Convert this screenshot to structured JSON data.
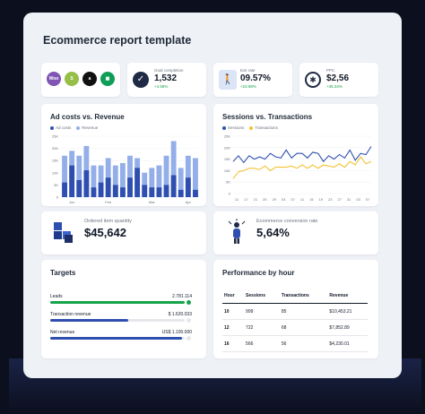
{
  "title": "Ecommerce report template",
  "colors": {
    "blue_dark": "#2f4fb0",
    "blue_light": "#93aee8",
    "yellow": "#f2c230",
    "green": "#16a34a",
    "line_blue": "#2f4fb0"
  },
  "kpis": [
    {
      "label": "Goal completion",
      "value": "1,532",
      "delta": "+4.58%"
    },
    {
      "label": "Exit rate",
      "value": "09.57%",
      "delta": "+23.98%"
    },
    {
      "label": "PPC",
      "value": "$2,56",
      "delta": "+35.34%"
    }
  ],
  "logos": [
    {
      "icon": "woocommerce-icon",
      "text": "Woo",
      "color": "#7f54b3"
    },
    {
      "icon": "shopify-icon",
      "text": "S",
      "color": "#95bf47"
    },
    {
      "icon": "amazon-icon",
      "text": "a",
      "color": "#111111"
    },
    {
      "icon": "sheets-icon",
      "text": "▦",
      "color": "#0f9d58"
    }
  ],
  "chart_data": [
    {
      "type": "bar",
      "title": "Ad costs vs. Revenue",
      "legend": [
        "Ad costs",
        "Revenue"
      ],
      "yticks": [
        "0",
        "5K",
        "10K",
        "15K",
        "20K",
        "25K"
      ],
      "ylim": [
        0,
        25000
      ],
      "xticks": [
        "Jun",
        "Feb",
        "Mar",
        "Apr"
      ],
      "series": [
        {
          "name": "Ad costs",
          "values": [
            6000,
            13000,
            7000,
            11000,
            4000,
            6000,
            8000,
            5000,
            4000,
            8000,
            12000,
            5000,
            4000,
            4000,
            5000,
            9000,
            3000,
            8000,
            3000
          ]
        },
        {
          "name": "Revenue",
          "values": [
            17000,
            19000,
            17000,
            21000,
            13000,
            13000,
            16000,
            13000,
            14000,
            17000,
            16000,
            10000,
            12000,
            13000,
            17000,
            23000,
            12000,
            17000,
            16000
          ]
        }
      ]
    },
    {
      "type": "line",
      "title": "Sessions vs. Transactions",
      "legend": [
        "Sessions",
        "Transactions"
      ],
      "yticks": [
        "0",
        "5K",
        "10K",
        "15K",
        "20K",
        "25K"
      ],
      "ylim": [
        0,
        25000
      ],
      "xticks": [
        "11",
        "17",
        "21",
        "25",
        "29",
        "03",
        "07",
        "11",
        "15",
        "19",
        "23",
        "27",
        "31",
        "03",
        "07"
      ],
      "series": [
        {
          "name": "Sessions",
          "values": [
            14000,
            16500,
            13500,
            16500,
            15000,
            16000,
            15000,
            17500,
            16000,
            15500,
            19000,
            15500,
            17500,
            17500,
            15500,
            18000,
            17500,
            14000,
            16500,
            15000,
            17000,
            15500,
            19000,
            14500,
            17500,
            17000,
            20500
          ]
        },
        {
          "name": "Transactions",
          "values": [
            6500,
            9500,
            10000,
            11000,
            11000,
            10500,
            12000,
            10000,
            11500,
            11500,
            11500,
            12000,
            11000,
            12500,
            11000,
            12500,
            11000,
            12500,
            12000,
            11500,
            13000,
            11500,
            14000,
            12500,
            16000,
            13000,
            14000
          ]
        }
      ]
    }
  ],
  "ordered": {
    "label": "Ordered item quantity",
    "value": "$45,642"
  },
  "conversion": {
    "label": "Ecommerce conversion rate",
    "value": "5,64%"
  },
  "targets": {
    "title": "Targets",
    "items": [
      {
        "name": "Leads",
        "value": "2.781.114",
        "progress": 1.0,
        "color": "#16a34a"
      },
      {
        "name": "Transaction revenue",
        "value": "$ 1.620.033",
        "progress": 0.58,
        "color": "#2f4fb0"
      },
      {
        "name": "Net revenue",
        "value": "US$ 1.100.000",
        "progress": 0.98,
        "color": "#2f4fb0"
      }
    ]
  },
  "performance": {
    "title": "Performance by hour",
    "headers": [
      "Hour",
      "Sessions",
      "Transactions",
      "Revenue"
    ],
    "rows": [
      [
        "10",
        "999",
        "85",
        "$10,453.21"
      ],
      [
        "12",
        "722",
        "68",
        "$7,852.89"
      ],
      [
        "16",
        "566",
        "56",
        "$4,230.01"
      ]
    ]
  }
}
